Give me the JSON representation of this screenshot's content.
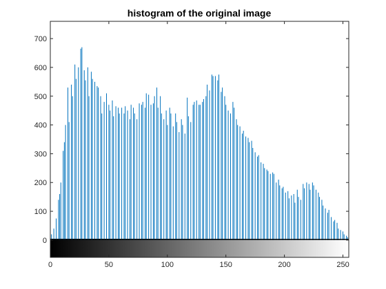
{
  "chart_data": {
    "type": "bar",
    "title": "histogram of the original image",
    "xlabel": "",
    "ylabel": "",
    "xlim": [
      0,
      255
    ],
    "ylim": [
      -60,
      760
    ],
    "x_ticks": [
      0,
      50,
      100,
      150,
      200,
      250
    ],
    "y_ticks": [
      0,
      100,
      200,
      300,
      400,
      500,
      600,
      700
    ],
    "grid": false,
    "colorbar": "grayscale",
    "bar_color": "#0072bd",
    "bins": [
      [
        1,
        20
      ],
      [
        3,
        40
      ],
      [
        5,
        75
      ],
      [
        7,
        140
      ],
      [
        8,
        160
      ],
      [
        9,
        200
      ],
      [
        11,
        310
      ],
      [
        12,
        340
      ],
      [
        13,
        400
      ],
      [
        15,
        530
      ],
      [
        16,
        410
      ],
      [
        18,
        540
      ],
      [
        19,
        500
      ],
      [
        21,
        610
      ],
      [
        22,
        560
      ],
      [
        24,
        600
      ],
      [
        26,
        665
      ],
      [
        27,
        670
      ],
      [
        29,
        590
      ],
      [
        30,
        555
      ],
      [
        32,
        600
      ],
      [
        33,
        500
      ],
      [
        35,
        585
      ],
      [
        36,
        560
      ],
      [
        38,
        550
      ],
      [
        40,
        535
      ],
      [
        41,
        530
      ],
      [
        43,
        500
      ],
      [
        44,
        440
      ],
      [
        46,
        480
      ],
      [
        48,
        510
      ],
      [
        50,
        470
      ],
      [
        51,
        450
      ],
      [
        53,
        485
      ],
      [
        54,
        430
      ],
      [
        56,
        465
      ],
      [
        58,
        460
      ],
      [
        59,
        440
      ],
      [
        61,
        460
      ],
      [
        63,
        440
      ],
      [
        64,
        465
      ],
      [
        66,
        450
      ],
      [
        68,
        420
      ],
      [
        69,
        470
      ],
      [
        71,
        460
      ],
      [
        72,
        440
      ],
      [
        74,
        420
      ],
      [
        76,
        475
      ],
      [
        78,
        470
      ],
      [
        79,
        480
      ],
      [
        81,
        460
      ],
      [
        82,
        510
      ],
      [
        84,
        505
      ],
      [
        86,
        470
      ],
      [
        88,
        475
      ],
      [
        89,
        500
      ],
      [
        91,
        530
      ],
      [
        92,
        460
      ],
      [
        94,
        500
      ],
      [
        95,
        440
      ],
      [
        97,
        420
      ],
      [
        99,
        450
      ],
      [
        100,
        400
      ],
      [
        102,
        460
      ],
      [
        103,
        440
      ],
      [
        105,
        395
      ],
      [
        107,
        440
      ],
      [
        108,
        410
      ],
      [
        110,
        375
      ],
      [
        112,
        420
      ],
      [
        113,
        400
      ],
      [
        115,
        370
      ],
      [
        117,
        495
      ],
      [
        118,
        430
      ],
      [
        120,
        410
      ],
      [
        122,
        470
      ],
      [
        123,
        480
      ],
      [
        125,
        485
      ],
      [
        127,
        470
      ],
      [
        128,
        470
      ],
      [
        130,
        480
      ],
      [
        131,
        490
      ],
      [
        133,
        500
      ],
      [
        134,
        540
      ],
      [
        136,
        520
      ],
      [
        138,
        575
      ],
      [
        139,
        570
      ],
      [
        141,
        570
      ],
      [
        143,
        555
      ],
      [
        144,
        575
      ],
      [
        146,
        515
      ],
      [
        147,
        530
      ],
      [
        149,
        500
      ],
      [
        150,
        470
      ],
      [
        152,
        450
      ],
      [
        154,
        440
      ],
      [
        156,
        480
      ],
      [
        157,
        460
      ],
      [
        159,
        420
      ],
      [
        160,
        400
      ],
      [
        162,
        395
      ],
      [
        164,
        370
      ],
      [
        165,
        380
      ],
      [
        167,
        360
      ],
      [
        169,
        355
      ],
      [
        170,
        340
      ],
      [
        172,
        345
      ],
      [
        173,
        320
      ],
      [
        175,
        305
      ],
      [
        177,
        290
      ],
      [
        178,
        295
      ],
      [
        180,
        270
      ],
      [
        182,
        265
      ],
      [
        183,
        250
      ],
      [
        185,
        245
      ],
      [
        186,
        240
      ],
      [
        188,
        230
      ],
      [
        190,
        235
      ],
      [
        191,
        230
      ],
      [
        193,
        200
      ],
      [
        195,
        210
      ],
      [
        196,
        190
      ],
      [
        198,
        180
      ],
      [
        199,
        185
      ],
      [
        201,
        165
      ],
      [
        203,
        170
      ],
      [
        204,
        145
      ],
      [
        206,
        155
      ],
      [
        208,
        160
      ],
      [
        209,
        130
      ],
      [
        211,
        175
      ],
      [
        212,
        150
      ],
      [
        214,
        140
      ],
      [
        216,
        195
      ],
      [
        217,
        180
      ],
      [
        219,
        200
      ],
      [
        221,
        195
      ],
      [
        222,
        175
      ],
      [
        224,
        200
      ],
      [
        225,
        190
      ],
      [
        227,
        175
      ],
      [
        229,
        165
      ],
      [
        230,
        150
      ],
      [
        232,
        140
      ],
      [
        233,
        120
      ],
      [
        235,
        110
      ],
      [
        237,
        95
      ],
      [
        238,
        105
      ],
      [
        240,
        80
      ],
      [
        242,
        65
      ],
      [
        243,
        70
      ],
      [
        245,
        60
      ],
      [
        246,
        40
      ],
      [
        248,
        35
      ],
      [
        250,
        30
      ],
      [
        251,
        20
      ],
      [
        253,
        15
      ],
      [
        254,
        10
      ]
    ]
  }
}
